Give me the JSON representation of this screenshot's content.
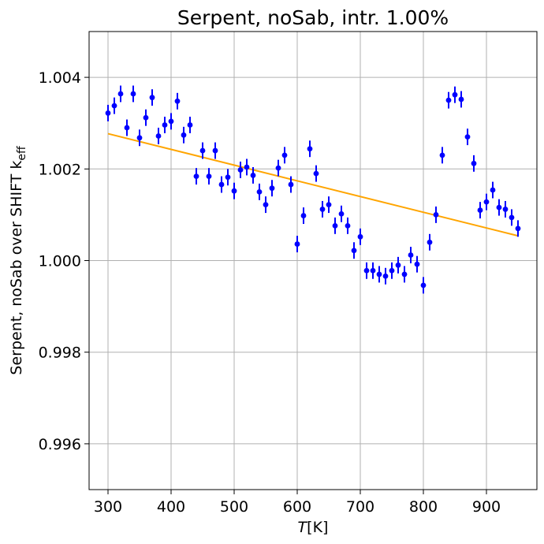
{
  "chart_data": {
    "type": "scatter",
    "title": "Serpent, noSab, intr. 1.00%",
    "xlabel": "T[K]",
    "xlabel_var": "T",
    "xlabel_unit": "[K]",
    "ylabel": "Serpent, noSab over SHIFT k_eff",
    "ylabel_main": "Serpent, noSab over SHIFT k",
    "ylabel_sub": "eff",
    "xlim": [
      270,
      980
    ],
    "ylim": [
      0.995,
      1.005
    ],
    "xticks": [
      300,
      400,
      500,
      600,
      700,
      800,
      900
    ],
    "yticks": [
      0.996,
      0.998,
      1.0,
      1.002,
      1.004
    ],
    "ytick_labels": [
      "0.996",
      "0.998",
      "1.000",
      "1.002",
      "1.004"
    ],
    "grid": true,
    "colors": {
      "points": "#0000ff",
      "fit": "#ffa500",
      "grid": "#b0b0b0"
    },
    "series": [
      {
        "kind": "errorbar",
        "x": [
          300,
          310,
          320,
          330,
          340,
          350,
          360,
          370,
          380,
          390,
          400,
          410,
          420,
          430,
          440,
          450,
          460,
          470,
          480,
          490,
          500,
          510,
          520,
          530,
          540,
          550,
          560,
          570,
          580,
          590,
          600,
          610,
          620,
          630,
          640,
          650,
          660,
          670,
          680,
          690,
          700,
          710,
          720,
          730,
          740,
          750,
          760,
          770,
          780,
          790,
          800,
          810,
          820,
          830,
          840,
          850,
          860,
          870,
          880,
          890,
          900,
          910,
          920,
          930,
          940,
          950
        ],
        "y": [
          1.00322,
          1.00338,
          1.00364,
          1.0029,
          1.00364,
          1.00268,
          1.00312,
          1.00356,
          1.00272,
          1.00296,
          1.00304,
          1.00348,
          1.00274,
          1.00296,
          1.00184,
          1.0024,
          1.00184,
          1.0024,
          1.00166,
          1.00182,
          1.00152,
          1.00198,
          1.00204,
          1.00186,
          1.0015,
          1.00122,
          1.00158,
          1.00202,
          1.0023,
          1.00166,
          1.00036,
          1.00098,
          1.00244,
          1.0019,
          1.00112,
          1.00122,
          1.00076,
          1.00102,
          1.00076,
          1.00022,
          1.00052,
          0.99978,
          0.99978,
          0.9997,
          0.99966,
          0.99978,
          0.9999,
          0.9997,
          1.00012,
          0.99992,
          0.99946,
          1.0004,
          1.001,
          1.0023,
          1.0035,
          1.00362,
          1.00352,
          1.0027,
          1.00212,
          1.0011,
          1.00128,
          1.00154,
          1.00116,
          1.00112,
          1.00094,
          1.0007
        ],
        "yerr": 0.00018
      },
      {
        "kind": "line",
        "x": [
          300,
          950
        ],
        "y": [
          1.00277,
          1.00054
        ]
      }
    ]
  }
}
